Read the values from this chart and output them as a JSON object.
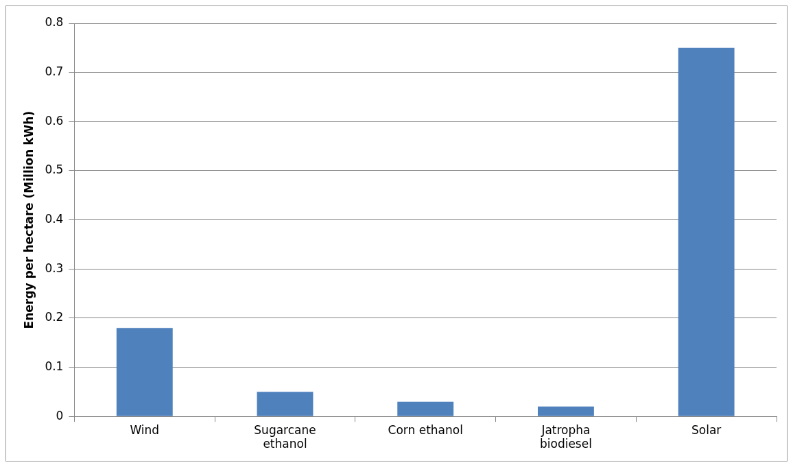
{
  "chart_data": {
    "type": "bar",
    "ylabel": "Energy per hectare (Million kWh)",
    "categories": [
      "Wind",
      "Sugarcane\nethanol",
      "Corn ethanol",
      "Jatropha\nbiodiesel",
      "Solar"
    ],
    "values": [
      0.18,
      0.05,
      0.03,
      0.02,
      0.75
    ],
    "color": "#4f81bd",
    "ylim": [
      0,
      0.8
    ],
    "yticks": [
      0,
      0.1,
      0.2,
      0.3,
      0.4,
      0.5,
      0.6,
      0.7,
      0.8
    ],
    "grid": "y",
    "legend": false
  }
}
